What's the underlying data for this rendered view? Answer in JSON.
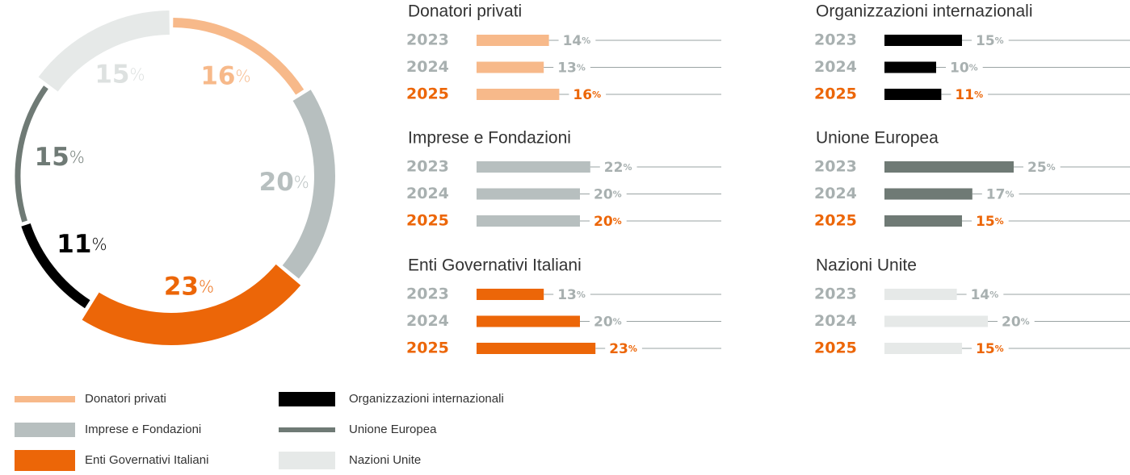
{
  "chart_data": [
    {
      "type": "pie",
      "unit": "%",
      "categories": [
        "Donatori privati",
        "Imprese e Fondazioni",
        "Enti Governativi Italiani",
        "Organizzazioni internazionali",
        "Unione Europea",
        "Nazioni Unite"
      ],
      "values": [
        16,
        20,
        23,
        11,
        15,
        15
      ],
      "colors": [
        "#f7b98a",
        "#b7bfbf",
        "#ec6608",
        "#000000",
        "#6f7a75",
        "#e6e9e8"
      ]
    },
    {
      "type": "bar",
      "title": "Donatori privati",
      "categories": [
        "2023",
        "2024",
        "2025"
      ],
      "values": [
        14,
        13,
        16
      ],
      "color": "#f7b98a"
    },
    {
      "type": "bar",
      "title": "Imprese e Fondazioni",
      "categories": [
        "2023",
        "2024",
        "2025"
      ],
      "values": [
        22,
        20,
        20
      ],
      "color": "#b7bfbf"
    },
    {
      "type": "bar",
      "title": "Enti Governativi Italiani",
      "categories": [
        "2023",
        "2024",
        "2025"
      ],
      "values": [
        13,
        20,
        23
      ],
      "color": "#ec6608"
    },
    {
      "type": "bar",
      "title": "Organizzazioni internazionali",
      "categories": [
        "2023",
        "2024",
        "2025"
      ],
      "values": [
        15,
        10,
        11
      ],
      "color": "#000000"
    },
    {
      "type": "bar",
      "title": "Unione Europea",
      "categories": [
        "2023",
        "2024",
        "2025"
      ],
      "values": [
        25,
        17,
        15
      ],
      "color": "#6f7a75"
    },
    {
      "type": "bar",
      "title": "Nazioni Unite",
      "categories": [
        "2023",
        "2024",
        "2025"
      ],
      "values": [
        14,
        20,
        15
      ],
      "color": "#e6e9e8"
    }
  ]
}
